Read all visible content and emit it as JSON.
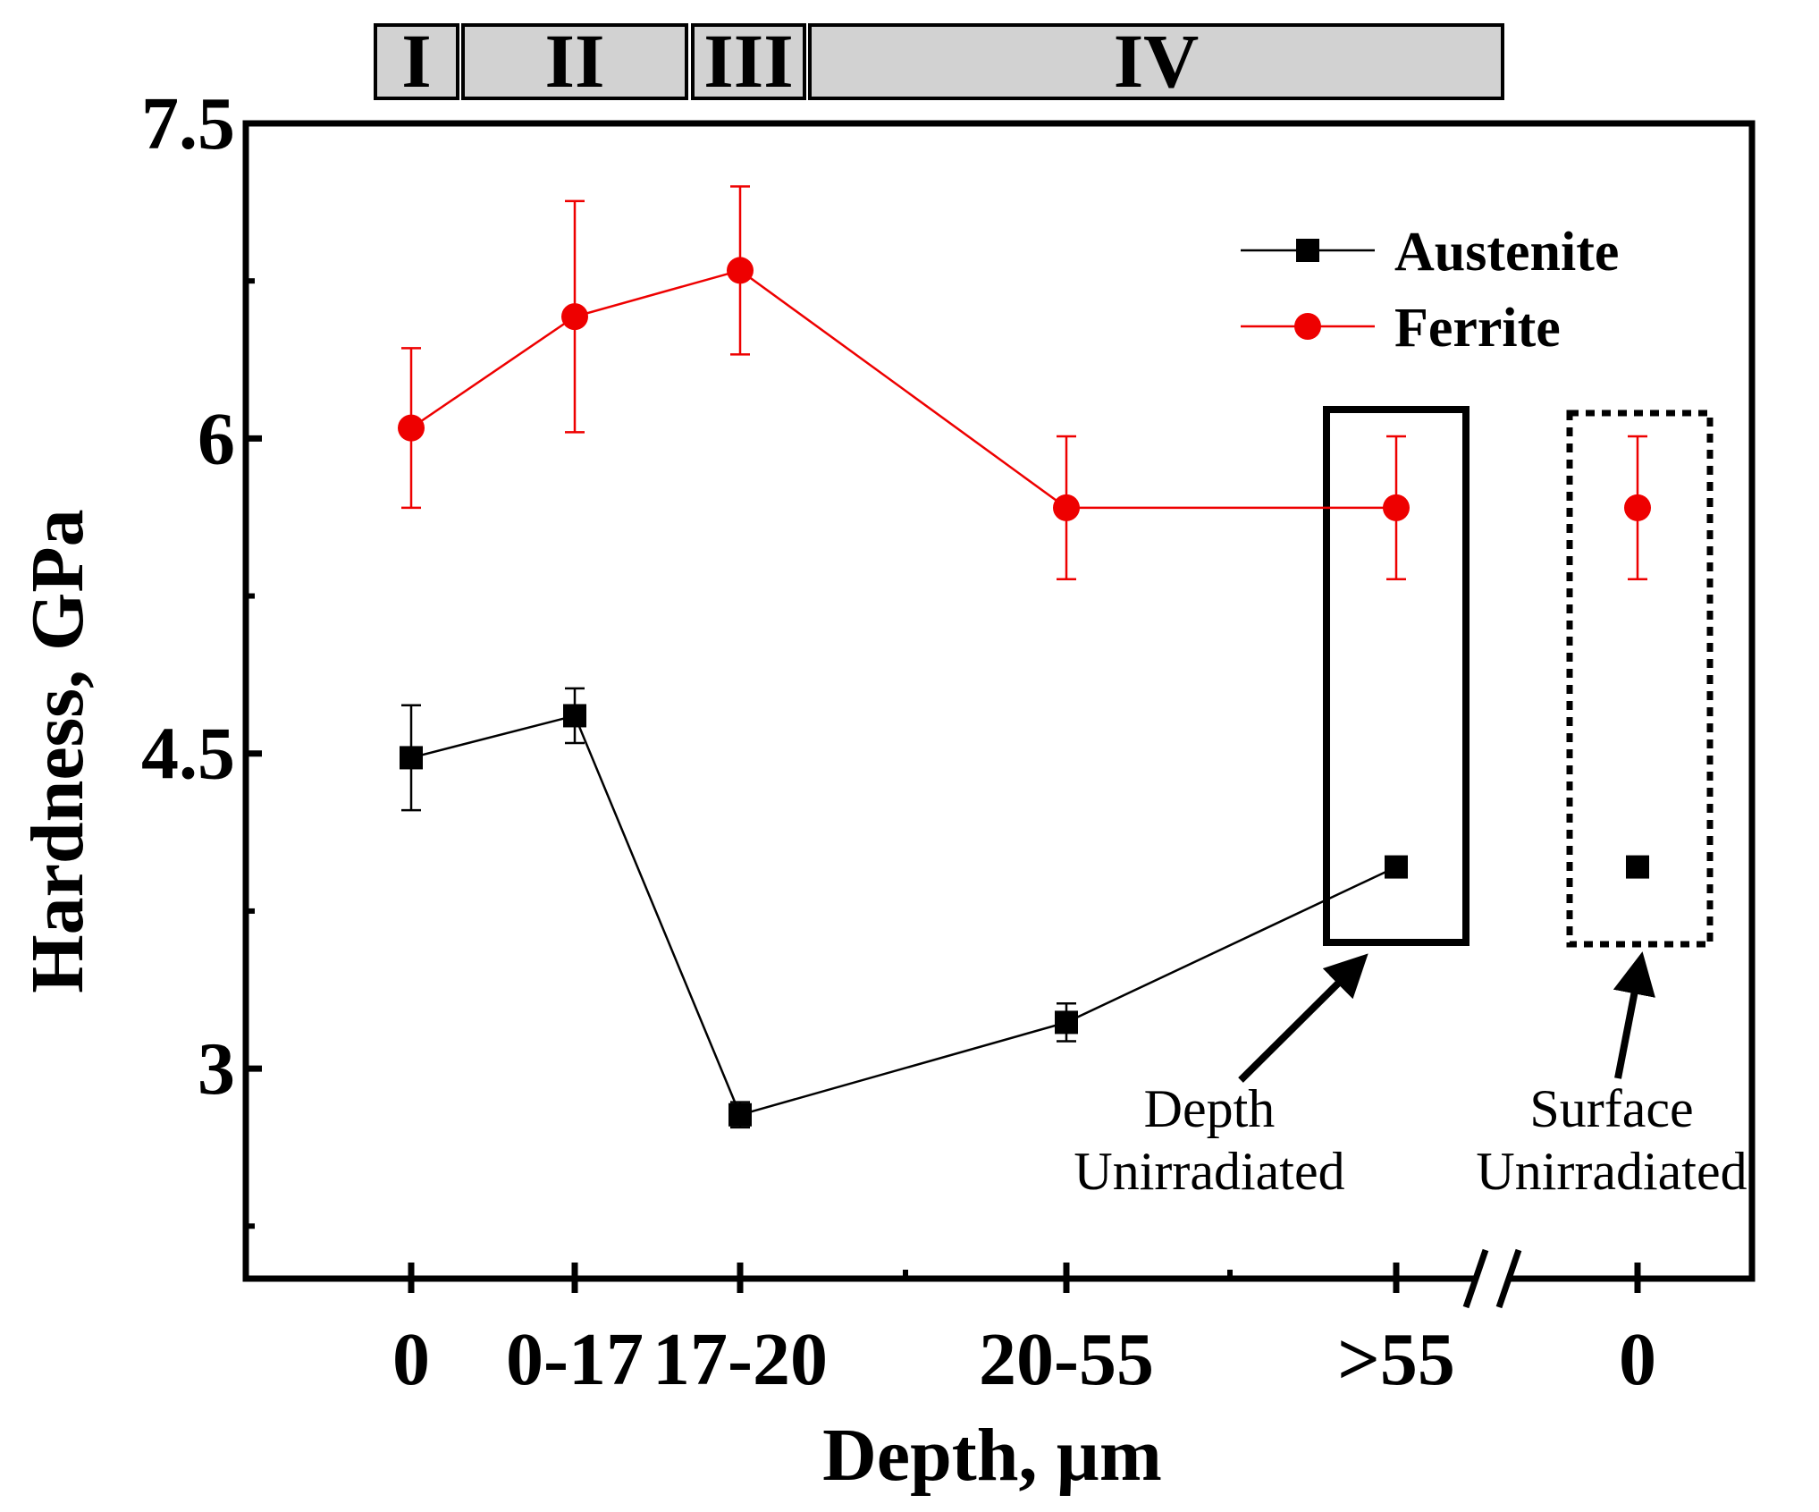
{
  "chart_data": {
    "type": "line",
    "xlabel": "Depth, µm",
    "ylabel": "Hardness, GPa",
    "ylim": [
      2.0,
      7.5
    ],
    "y_ticks": [
      "7.5",
      "6",
      "4.5",
      "3"
    ],
    "categories": [
      "0",
      "0-17",
      "17-20",
      "20-55",
      ">55",
      "0"
    ],
    "axis_break_after": ">55",
    "regions": [
      {
        "label": "I",
        "span": [
          "0",
          "0"
        ]
      },
      {
        "label": "II",
        "span": [
          "0-17",
          "0-17"
        ]
      },
      {
        "label": "III",
        "span": [
          "17-20",
          "17-20"
        ]
      },
      {
        "label": "IV",
        "span": [
          "20-55",
          ">55"
        ]
      }
    ],
    "series": [
      {
        "name": "Austenite",
        "color": "#000000",
        "marker": "square",
        "values": [
          4.48,
          4.68,
          2.78,
          3.22,
          3.96,
          3.96
        ],
        "errors": [
          0.25,
          0.13,
          0.06,
          0.09,
          0.0,
          0.0
        ],
        "connected_points": 5
      },
      {
        "name": "Ferrite",
        "color": "#ee0000",
        "marker": "circle",
        "values": [
          6.05,
          6.58,
          6.8,
          5.67,
          5.67,
          5.67
        ],
        "errors": [
          0.38,
          0.55,
          0.4,
          0.34,
          0.34,
          0.34
        ],
        "connected_points": 5
      }
    ],
    "annotations": [
      {
        "id": "depth",
        "line1": "Depth",
        "line2": "Unirradiated",
        "target": ">55",
        "box_style": "solid"
      },
      {
        "id": "surface",
        "line1": "Surface",
        "line2": "Unirradiated",
        "target": "0",
        "box_style": "dotted"
      }
    ]
  }
}
